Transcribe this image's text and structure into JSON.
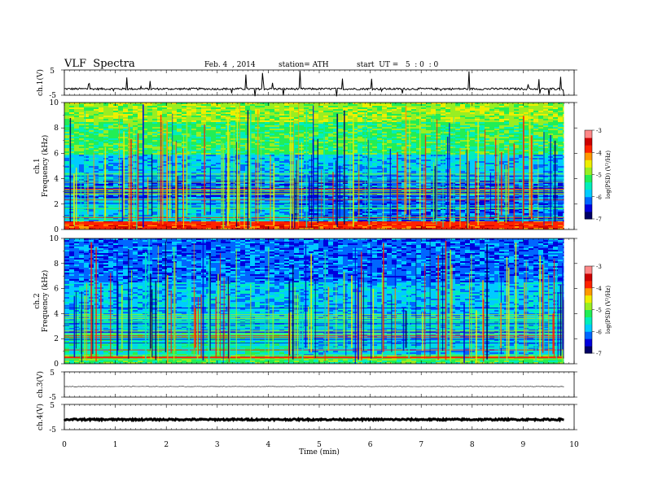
{
  "header": {
    "title": "VLF  Spectra",
    "date": "Feb. 4  , 2014",
    "station": "station= ATH",
    "start": "start  UT =   5  : 0  : 0"
  },
  "colors": {
    "colormap": [
      "#000066",
      "#0000dd",
      "#0066ff",
      "#00ccff",
      "#00eebb",
      "#22ee55",
      "#99ee22",
      "#eeee00",
      "#ff9900",
      "#ff2200",
      "#cc0000",
      "#ff8888",
      "#ffffff"
    ],
    "trace": "#000000",
    "axis": "#000000"
  },
  "chart_data": [
    {
      "type": "line",
      "name": "ch1-waveform",
      "ylabel": "ch.1(V)",
      "ylim": [
        -5,
        5
      ],
      "yticks": [
        "5",
        "-5"
      ],
      "baseline": -2.5,
      "noise": 0.4,
      "spike_max": 5,
      "x_end": 9.8
    },
    {
      "type": "heatmap",
      "name": "ch1-spectrogram",
      "ylabel_lines": [
        "ch.1",
        "Frequency  (kHz)"
      ],
      "ylim": [
        0,
        10
      ],
      "yticks": [
        "0",
        "2",
        "4",
        "6",
        "8",
        "10"
      ],
      "x_end": 9.8,
      "step_time": 4.48,
      "colorbar": {
        "label": "log(PSD) (V²/Hz)",
        "ticks": [
          "-3",
          "-4",
          "-5",
          "-6",
          "-7"
        ],
        "range": [
          -7,
          -3
        ]
      }
    },
    {
      "type": "heatmap",
      "name": "ch2-spectrogram",
      "ylabel_lines": [
        "ch.2",
        "Frequency  (kHz)"
      ],
      "ylim": [
        0,
        10
      ],
      "yticks": [
        "0",
        "2",
        "4",
        "6",
        "8",
        "10"
      ],
      "x_end": 9.8,
      "step_time": 4.48,
      "colorbar": {
        "label": "log(PSD) (V²/Hz)",
        "ticks": [
          "-3",
          "-4",
          "-5",
          "-6",
          "-7"
        ],
        "range": [
          -7,
          -3
        ]
      }
    },
    {
      "type": "line",
      "name": "ch3-waveform",
      "ylabel": "ch.3(V)",
      "ylim": [
        -5,
        5
      ],
      "yticks": [
        "5",
        "-5"
      ],
      "baseline": -0.8,
      "noise": 0.1,
      "x_end": 9.8
    },
    {
      "type": "line",
      "name": "ch4-waveform",
      "ylabel": "ch.4(V)",
      "ylim": [
        -5,
        5
      ],
      "yticks": [
        "5",
        "-5"
      ],
      "baseline": -1.0,
      "noise": 0.3,
      "x_end": 9.8
    }
  ],
  "xaxis": {
    "label": "Time  (min)",
    "ticks": [
      "0",
      "1",
      "2",
      "3",
      "4",
      "5",
      "6",
      "7",
      "8",
      "9",
      "10"
    ],
    "xlim": [
      0,
      10
    ]
  }
}
